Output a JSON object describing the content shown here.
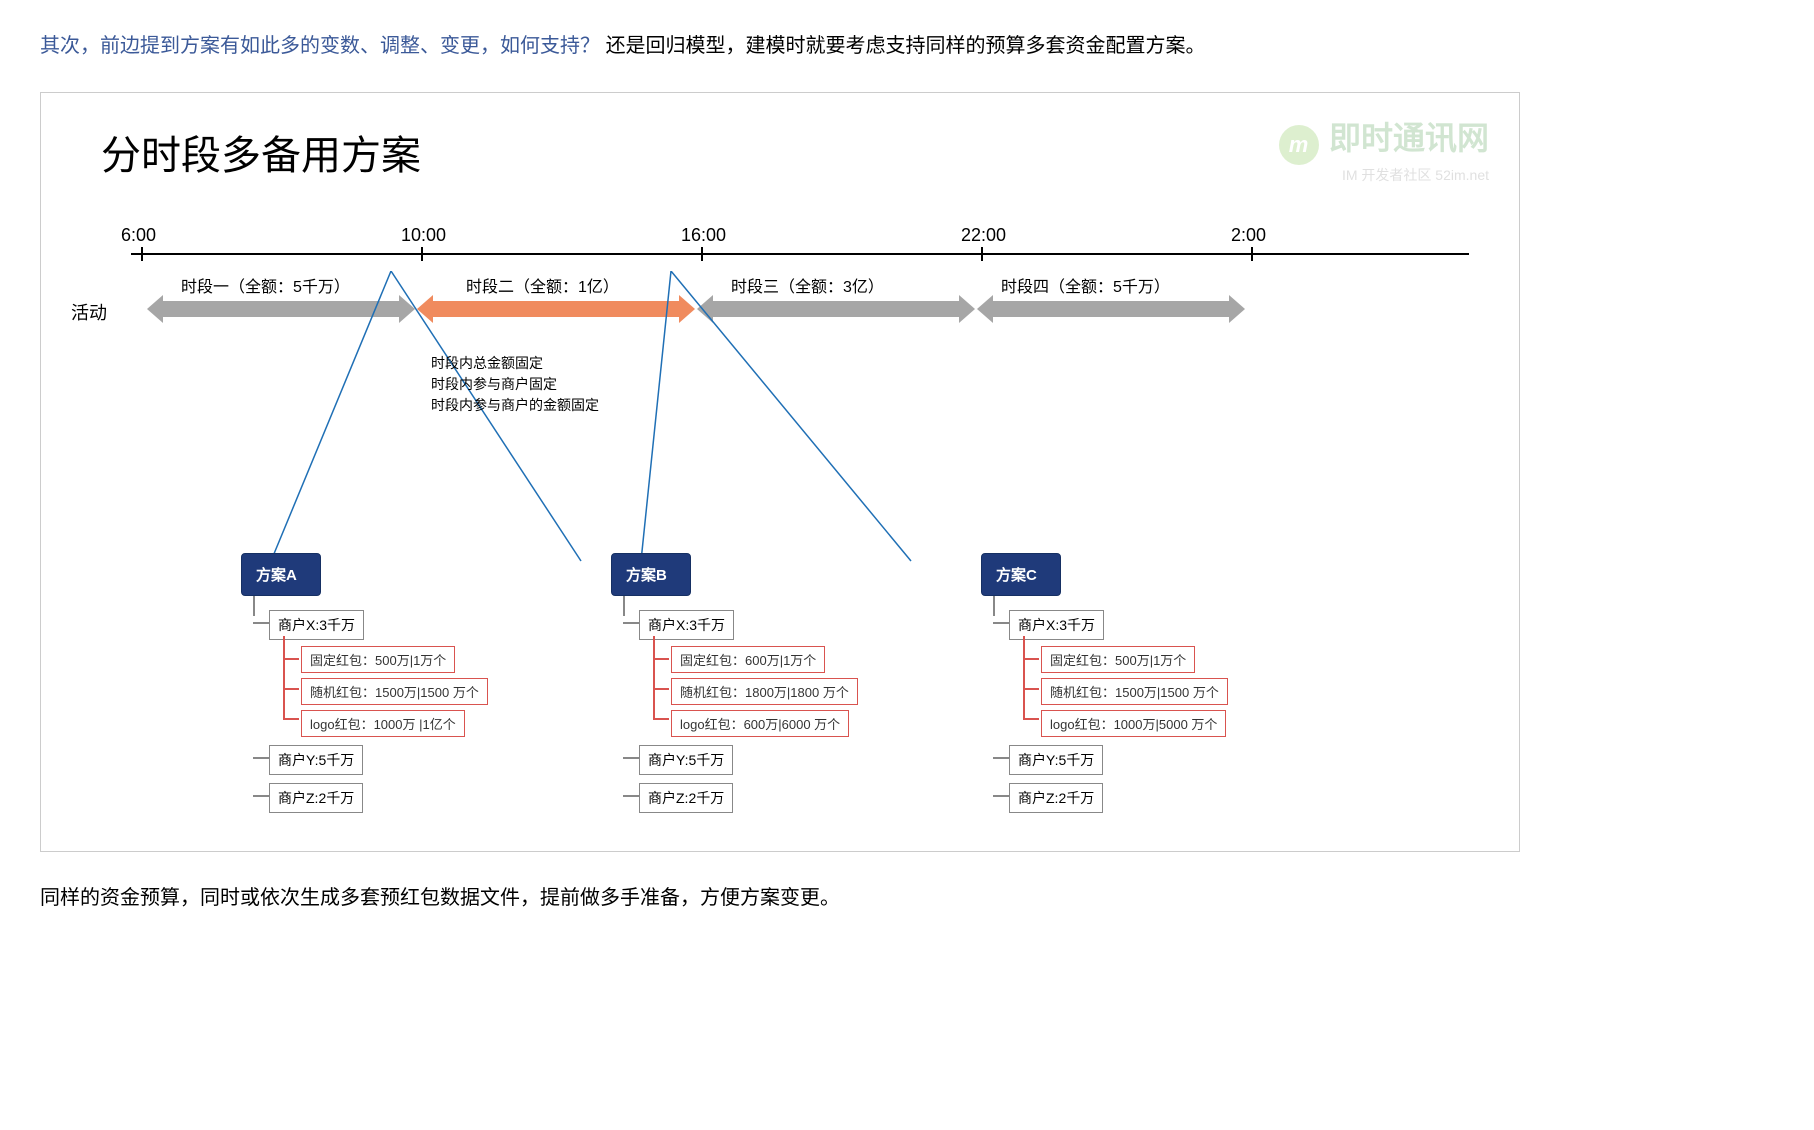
{
  "intro": {
    "blue_part": "其次，前边提到方案有如此多的变数、调整、变更，如何支持？",
    "black_part": "还是回归模型，建模时就要考虑支持同样的预算多套资金配置方案。"
  },
  "diagram": {
    "title": "分时段多备用方案",
    "watermark_main": "即时通讯网",
    "watermark_sub": "IM 开发者社区  52im.net",
    "watermark_badge": "m",
    "timeline": {
      "times": [
        "6:00",
        "10:00",
        "16:00",
        "22:00",
        "2:00"
      ],
      "activity_label": "活动",
      "segments": [
        {
          "label": "时段一（全额：5千万）",
          "color": "gray"
        },
        {
          "label": "时段二（全额：1亿）",
          "color": "orange"
        },
        {
          "label": "时段三（全额：3亿）",
          "color": "gray"
        },
        {
          "label": "时段四（全额：5千万）",
          "color": "gray"
        }
      ]
    },
    "middle_lines": [
      "时段内总金额固定",
      "时段内参与商户固定",
      "时段内参与商户的金额固定"
    ],
    "fanout_color": "#1f6fb5",
    "plans": [
      {
        "name": "方案A",
        "merchants": [
          {
            "label": "商户X:3千万",
            "items": [
              "固定红包：500万|1万个",
              "随机红包：1500万|1500 万个",
              "logo红包：1000万 |1亿个"
            ]
          },
          {
            "label": "商户Y:5千万",
            "items": []
          },
          {
            "label": "商户Z:2千万",
            "items": []
          }
        ]
      },
      {
        "name": "方案B",
        "merchants": [
          {
            "label": "商户X:3千万",
            "items": [
              "固定红包：600万|1万个",
              "随机红包：1800万|1800 万个",
              "logo红包：600万|6000 万个"
            ]
          },
          {
            "label": "商户Y:5千万",
            "items": []
          },
          {
            "label": "商户Z:2千万",
            "items": []
          }
        ]
      },
      {
        "name": "方案C",
        "merchants": [
          {
            "label": "商户X:3千万",
            "items": [
              "固定红包：500万|1万个",
              "随机红包：1500万|1500 万个",
              "logo红包：1000万|5000 万个"
            ]
          },
          {
            "label": "商户Y:5千万",
            "items": []
          },
          {
            "label": "商户Z:2千万",
            "items": []
          }
        ]
      }
    ],
    "colors": {
      "arrow_gray": "#a6a6a6",
      "arrow_orange": "#f08b5e",
      "plan_header_bg": "#1f3a7a",
      "node_border": "#888888",
      "node_red_border": "#d9534f",
      "fanout_line": "#1f6fb5"
    }
  },
  "outro": "同样的资金预算，同时或依次生成多套预红包数据文件，提前做多手准备，方便方案变更。"
}
